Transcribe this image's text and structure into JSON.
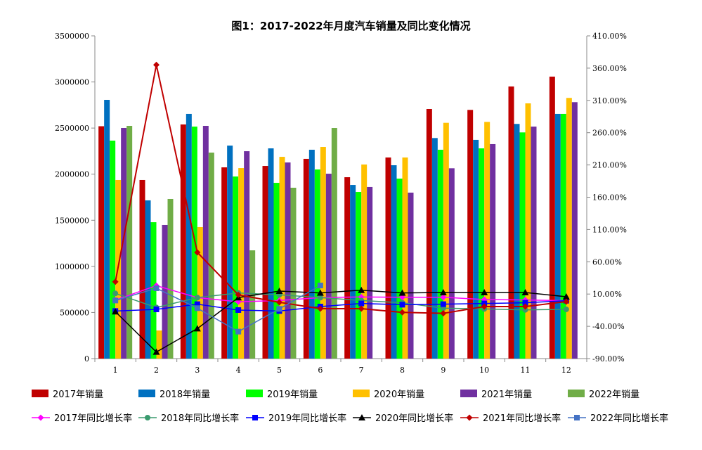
{
  "chart_data": {
    "type": "bar+line",
    "title": "图1：2017-2022年月度汽车销量及同比变化情况",
    "categories": [
      "1",
      "2",
      "3",
      "4",
      "5",
      "6",
      "7",
      "8",
      "9",
      "10",
      "11",
      "12"
    ],
    "y_left": {
      "min": 0,
      "max": 3500000,
      "step": 500000,
      "ticks": [
        "0",
        "500000",
        "1000000",
        "1500000",
        "2000000",
        "2500000",
        "3000000",
        "3500000"
      ]
    },
    "y_right": {
      "min": -90,
      "max": 410,
      "step": 50,
      "ticks": [
        "-90.00%",
        "-40.00%",
        "10.00%",
        "60.00%",
        "110.00%",
        "160.00%",
        "210.00%",
        "260.00%",
        "310.00%",
        "360.00%",
        "410.00%"
      ]
    },
    "grid": false,
    "legend_position": "bottom",
    "bar_series": [
      {
        "name": "2017年销量",
        "color": "#C00000",
        "values": [
          2520000,
          1937000,
          2539000,
          2074000,
          2089000,
          2166000,
          1967000,
          2181000,
          2707000,
          2697000,
          2951000,
          3058000
        ]
      },
      {
        "name": "2018年销量",
        "color": "#0070C0",
        "values": [
          2806000,
          1716000,
          2654000,
          2310000,
          2280000,
          2265000,
          1883000,
          2097000,
          2392000,
          2372000,
          2545000,
          2654000
        ]
      },
      {
        "name": "2019年销量",
        "color": "#00FF00",
        "values": [
          2364000,
          1479000,
          2516000,
          1975000,
          1906000,
          2051000,
          1807000,
          1952000,
          2265000,
          2280000,
          2453000,
          2654000
        ]
      },
      {
        "name": "2020年销量",
        "color": "#FFC000",
        "values": [
          1937000,
          305000,
          1426000,
          2066000,
          2188000,
          2295000,
          2105000,
          2181000,
          2557000,
          2567000,
          2768000,
          2827000
        ]
      },
      {
        "name": "2021年销量",
        "color": "#7030A0",
        "values": [
          2501000,
          1449000,
          2524000,
          2249000,
          2127000,
          2005000,
          1861000,
          1800000,
          2064000,
          2326000,
          2516000,
          2781000
        ]
      },
      {
        "name": "2022年销量",
        "color": "#70AD47",
        "values": [
          2524000,
          1731000,
          2234000,
          1174000,
          1853000,
          2501000,
          null,
          null,
          null,
          null,
          null,
          null
        ]
      }
    ],
    "line_series": [
      {
        "name": "2017年同比增长率",
        "color": "#FF00FF",
        "marker": "diamond",
        "values": [
          0.8,
          23,
          4.5,
          -2,
          0,
          4.5,
          5.5,
          5,
          5,
          1.5,
          0.8,
          -0.3
        ]
      },
      {
        "name": "2018年同比增长率",
        "color": "#3A9A6E",
        "marker": "circle",
        "values": [
          11,
          -10.8,
          4.5,
          11.7,
          8.8,
          4.5,
          0,
          -3.5,
          -11.9,
          -13,
          -14.5,
          -13.7
        ]
      },
      {
        "name": "2019年同比增长率",
        "color": "#0000FF",
        "marker": "square",
        "values": [
          -16.3,
          -13.7,
          -5.7,
          -14.8,
          -16.3,
          -9.4,
          -4.6,
          -6.5,
          -5.7,
          -4.6,
          -3.5,
          -0.3
        ]
      },
      {
        "name": "2020年同比增长率",
        "color": "#000000",
        "marker": "triangle",
        "values": [
          -17.3,
          -79.8,
          -43.5,
          4.5,
          14.6,
          11.7,
          16,
          11.7,
          12.4,
          12.4,
          12.4,
          5.9
        ]
      },
      {
        "name": "2021年同比增长率",
        "color": "#C00000",
        "marker": "diamond",
        "values": [
          29,
          365,
          74.5,
          8.8,
          -2.8,
          -12.6,
          -12.6,
          -18.4,
          -19.9,
          -9.4,
          -9.4,
          -1.7
        ]
      },
      {
        "name": "2022年同比增长率",
        "color": "#4472C4",
        "marker": "square",
        "values": [
          0,
          19,
          -11.9,
          -48.2,
          -13,
          23.3,
          null,
          null,
          null,
          null,
          null,
          null
        ]
      }
    ]
  }
}
